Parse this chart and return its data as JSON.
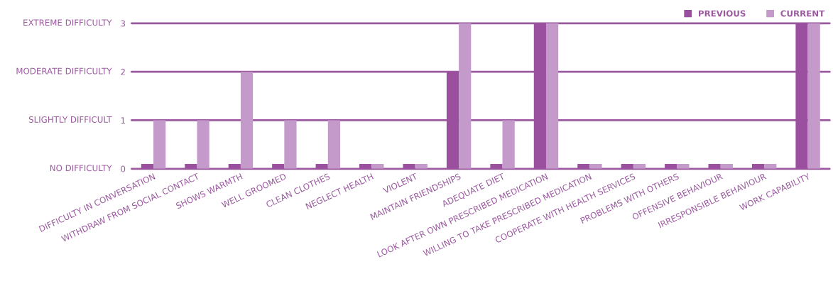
{
  "chart_data": {
    "type": "bar",
    "categories": [
      "DIFFICULTY IN CONVERSATION",
      "WITHDRAW FROM SOCIAL CONTACT",
      "SHOWS WARMTH",
      "WELL GROOMED",
      "CLEAN CLOTHES",
      "NEGLECT HEALTH",
      "VIOLENT",
      "MAINTAIN FRIENDSHIPS",
      "ADEQUATE DIET",
      "LOOK AFTER OWN PRESCRIBED MEDICATION",
      "WILLING TO TAKE PRESCRIBED MEDICATION",
      "COOPERATE WITH HEALTH SERVICES",
      "PROBLEMS WITH OTHERS",
      "OFFENSIVE BEHAVIOUR",
      "IRRESPONSIBLE BEHAVIOUR",
      "WORK CAPABILITY"
    ],
    "series": [
      {
        "name": "PREVIOUS",
        "color": "#9b4f9f",
        "values": [
          0.1,
          0.1,
          0.1,
          0.1,
          0.1,
          0.1,
          0.1,
          2,
          0.1,
          3,
          0.1,
          0.1,
          0.1,
          0.1,
          0.1,
          3
        ]
      },
      {
        "name": "CURRENT",
        "color": "#c39ac9",
        "values": [
          1,
          1,
          2,
          1,
          1,
          0.1,
          0.1,
          3,
          1,
          3,
          0.1,
          0.1,
          0.1,
          0.1,
          0.1,
          3
        ]
      }
    ],
    "ylim": [
      0,
      3
    ],
    "yticks": [
      0,
      1,
      2,
      3
    ],
    "annotations": [
      "NO DIFFICULTY",
      "SLIGHTLY DIFFICULT",
      "MODERATE DIFFICULTY",
      "EXTREME DIFFICULTY"
    ],
    "grid": "y",
    "legend": "top right"
  }
}
